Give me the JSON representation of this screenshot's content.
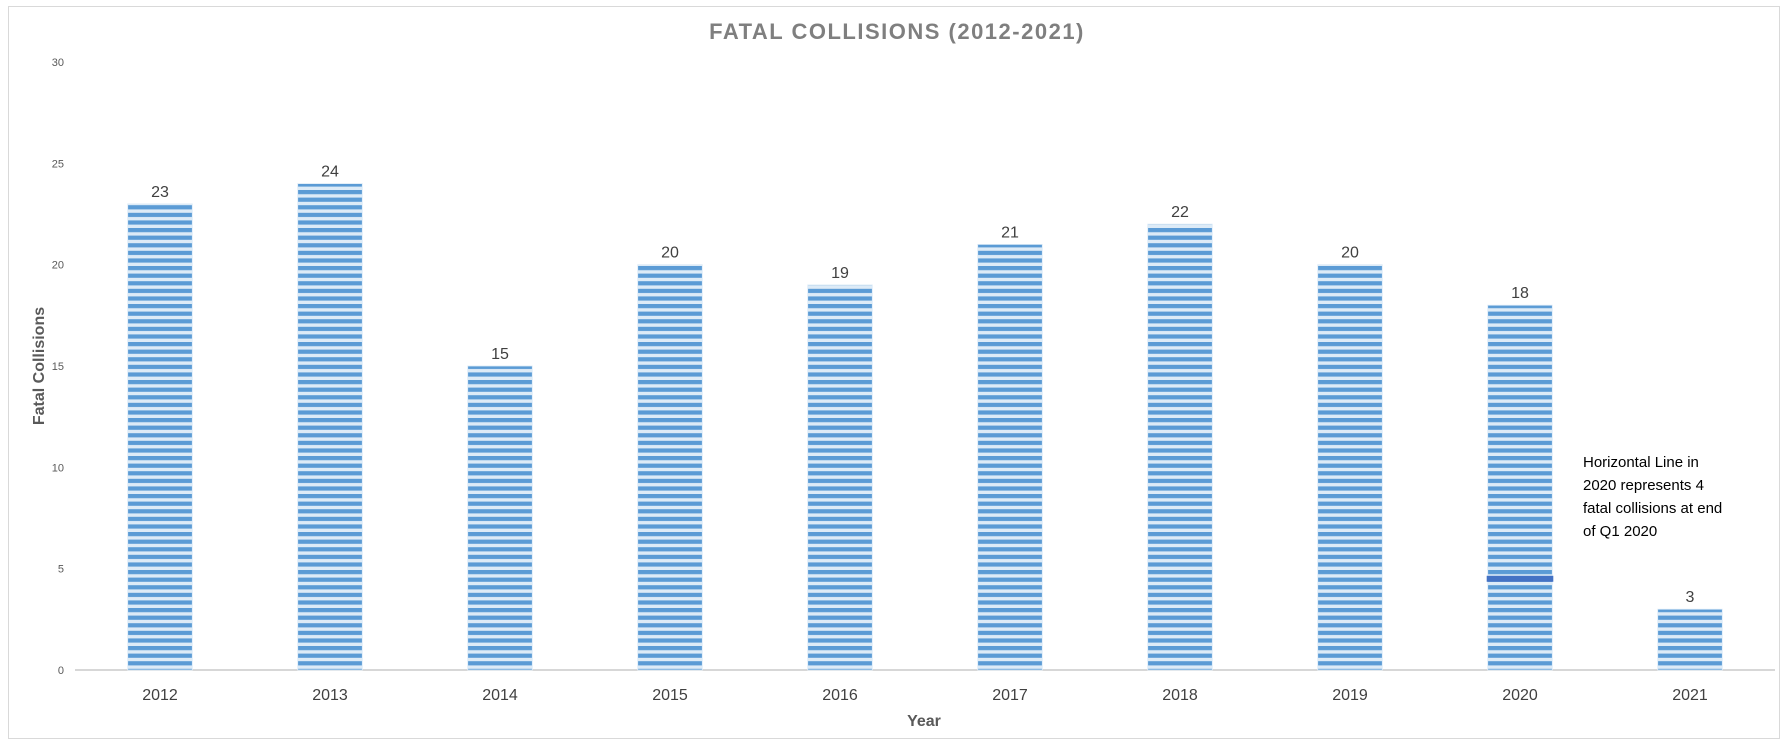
{
  "chart_data": {
    "type": "bar",
    "title": "FATAL COLLISIONS (2012-2021)",
    "xlabel": "Year",
    "ylabel": "Fatal Collisions",
    "ylim": [
      0,
      30
    ],
    "yticks": [
      "0",
      "5",
      "10",
      "15",
      "20",
      "25",
      "30"
    ],
    "categories": [
      "2012",
      "2013",
      "2014",
      "2015",
      "2016",
      "2017",
      "2018",
      "2019",
      "2020",
      "2021"
    ],
    "values": [
      23,
      24,
      15,
      20,
      19,
      21,
      22,
      20,
      18,
      3
    ],
    "grid": false,
    "legend": "none",
    "bar_color": "#5b9bd5",
    "bar_stripe_color": "#ddebf7",
    "reference_marker": {
      "category": "2020",
      "value": 4.5,
      "color": "#4472c4"
    },
    "annotation_lines": [
      "Horizontal Line in",
      "2020 represents 4",
      "fatal collisions at end",
      "of Q1 2020"
    ]
  }
}
